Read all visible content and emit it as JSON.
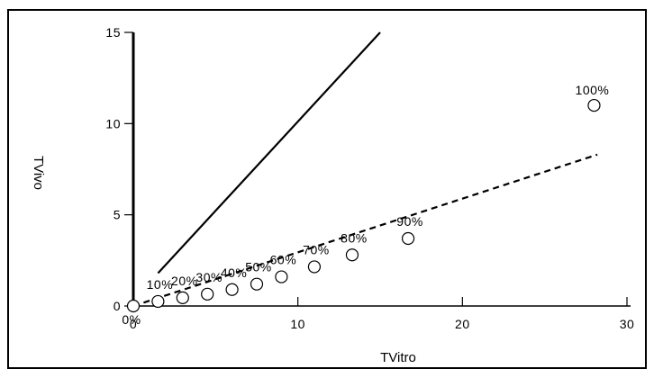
{
  "chart_data": {
    "type": "scatter",
    "xlabel": "TVitro",
    "ylabel": "TVivo",
    "xlim": [
      0,
      30
    ],
    "ylim": [
      0,
      15
    ],
    "x_ticks": [
      "0",
      "10",
      "20",
      "30"
    ],
    "y_ticks": [
      "0",
      "5",
      "10",
      "15"
    ],
    "grid": false,
    "series": [
      {
        "marker": "open-circle",
        "points": [
          {
            "x": 0,
            "y": 0,
            "label": "0%"
          },
          {
            "x": 1.5,
            "y": 0.25,
            "label": "10%"
          },
          {
            "x": 3.0,
            "y": 0.45,
            "label": "20%"
          },
          {
            "x": 4.5,
            "y": 0.65,
            "label": "30%"
          },
          {
            "x": 6.0,
            "y": 0.9,
            "label": "40%"
          },
          {
            "x": 7.5,
            "y": 1.2,
            "label": "50%"
          },
          {
            "x": 9.0,
            "y": 1.6,
            "label": "60%"
          },
          {
            "x": 11.0,
            "y": 2.15,
            "label": "70%"
          },
          {
            "x": 13.3,
            "y": 2.8,
            "label": "80%"
          },
          {
            "x": 16.7,
            "y": 3.7,
            "label": "90%"
          },
          {
            "x": 28.0,
            "y": 11.0,
            "label": "100%"
          }
        ]
      }
    ],
    "lines": [
      {
        "style": "solid",
        "from": [
          1.5,
          1.8
        ],
        "to": [
          15,
          15
        ]
      },
      {
        "style": "dashed",
        "from": [
          0,
          0
        ],
        "to": [
          28.2,
          8.3
        ]
      }
    ]
  }
}
